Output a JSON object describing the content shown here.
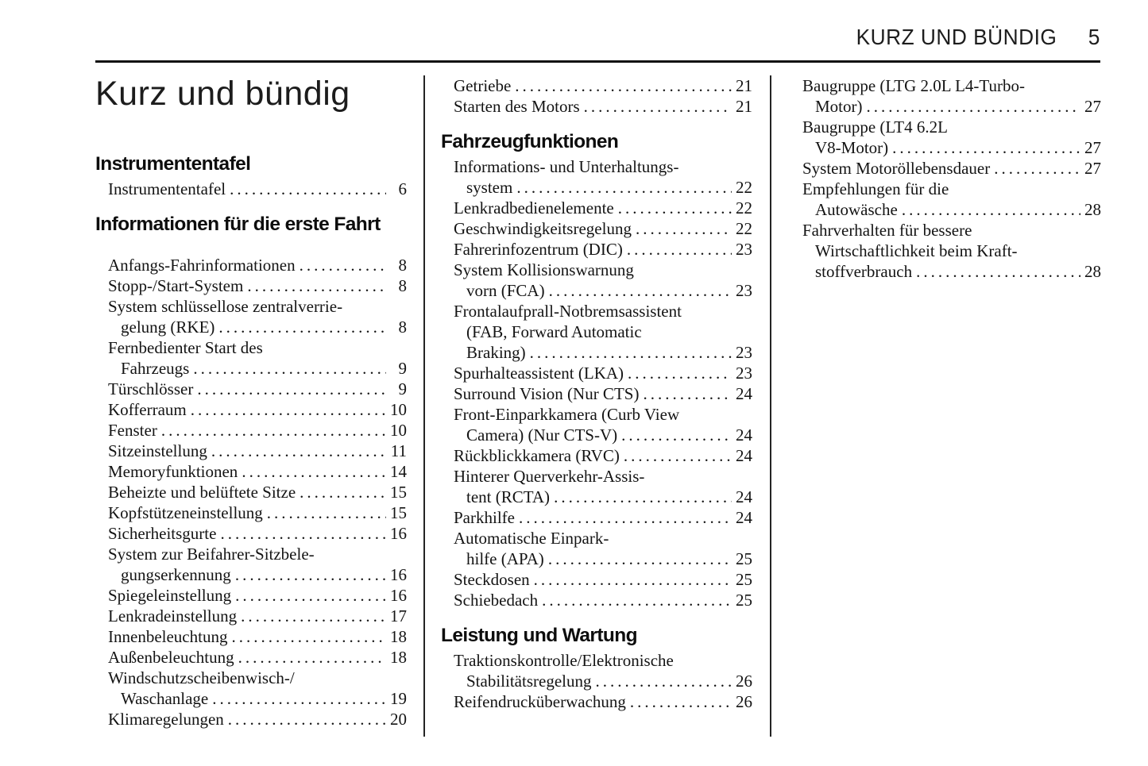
{
  "page": {
    "header": {
      "title": "KURZ UND BÜNDIG",
      "page_number": "5"
    },
    "title": "Kurz und bündig"
  },
  "colors": {
    "ink": "#141414",
    "background": "#ffffff"
  },
  "columns": [
    {
      "sections": [
        {
          "heading": "Instrumententafel",
          "entries": [
            {
              "lines": [
                "Instrumententafel"
              ],
              "page": "6"
            }
          ]
        },
        {
          "heading": "Informationen für die erste Fahrt",
          "gap_after_heading": true,
          "entries": [
            {
              "lines": [
                "Anfangs-Fahrinformationen"
              ],
              "page": "8"
            },
            {
              "lines": [
                "Stopp-/Start-System"
              ],
              "page": "8"
            },
            {
              "lines": [
                "System schlüssellose zentralverrie-",
                "gelung (RKE)"
              ],
              "page": "8"
            },
            {
              "lines": [
                "Fernbedienter Start des",
                "Fahrzeugs"
              ],
              "page": "9"
            },
            {
              "lines": [
                "Türschlösser"
              ],
              "page": "9"
            },
            {
              "lines": [
                "Kofferraum"
              ],
              "page": "10"
            },
            {
              "lines": [
                "Fenster"
              ],
              "page": "10"
            },
            {
              "lines": [
                "Sitzeinstellung"
              ],
              "page": "11"
            },
            {
              "lines": [
                "Memoryfunktionen"
              ],
              "page": "14"
            },
            {
              "lines": [
                "Beheizte und belüftete Sitze"
              ],
              "page": "15"
            },
            {
              "lines": [
                "Kopfstützeneinstellung"
              ],
              "page": "15"
            },
            {
              "lines": [
                "Sicherheitsgurte"
              ],
              "page": "16"
            },
            {
              "lines": [
                "System zur Beifahrer-Sitzbele-",
                "gungserkennung"
              ],
              "page": "16"
            },
            {
              "lines": [
                "Spiegeleinstellung"
              ],
              "page": "16"
            },
            {
              "lines": [
                "Lenkradeinstellung"
              ],
              "page": "17"
            },
            {
              "lines": [
                "Innenbeleuchtung"
              ],
              "page": "18"
            },
            {
              "lines": [
                "Außenbeleuchtung"
              ],
              "page": "18"
            },
            {
              "lines": [
                "Windschutzscheibenwisch-/",
                "Waschanlage"
              ],
              "page": "19"
            },
            {
              "lines": [
                "Klimaregelungen"
              ],
              "page": "20"
            }
          ]
        }
      ]
    },
    {
      "sections": [
        {
          "heading": null,
          "entries": [
            {
              "lines": [
                "Getriebe"
              ],
              "page": "21"
            },
            {
              "lines": [
                "Starten des Motors"
              ],
              "page": "21"
            }
          ]
        },
        {
          "heading": "Fahrzeugfunktionen",
          "entries": [
            {
              "lines": [
                "Informations- und Unterhaltungs-",
                "system"
              ],
              "page": "22"
            },
            {
              "lines": [
                "Lenkradbedienelemente"
              ],
              "page": "22"
            },
            {
              "lines": [
                "Geschwindigkeitsregelung"
              ],
              "page": "22"
            },
            {
              "lines": [
                "Fahrerinfozentrum (DIC)"
              ],
              "page": "23"
            },
            {
              "lines": [
                "System Kollisionswarnung",
                "vorn (FCA)"
              ],
              "page": "23"
            },
            {
              "lines": [
                "Frontalaufprall-Notbremsassistent",
                "(FAB, Forward Automatic",
                "Braking)"
              ],
              "page": "23"
            },
            {
              "lines": [
                "Spurhalteassistent (LKA)"
              ],
              "page": "23"
            },
            {
              "lines": [
                "Surround Vision (Nur CTS)"
              ],
              "page": "24"
            },
            {
              "lines": [
                "Front-Einparkkamera (Curb View",
                "Camera) (Nur CTS-V)"
              ],
              "page": "24"
            },
            {
              "lines": [
                "Rückblickkamera (RVC)"
              ],
              "page": "24"
            },
            {
              "lines": [
                "Hinterer Querverkehr-Assis-",
                "tent (RCTA)"
              ],
              "page": "24"
            },
            {
              "lines": [
                "Parkhilfe"
              ],
              "page": "24"
            },
            {
              "lines": [
                "Automatische Einpark-",
                "hilfe (APA)"
              ],
              "page": "25"
            },
            {
              "lines": [
                "Steckdosen"
              ],
              "page": "25"
            },
            {
              "lines": [
                "Schiebedach"
              ],
              "page": "25"
            }
          ]
        },
        {
          "heading": "Leistung und Wartung",
          "entries": [
            {
              "lines": [
                "Traktionskontrolle/Elektronische",
                "Stabilitätsregelung"
              ],
              "page": "26"
            },
            {
              "lines": [
                "Reifendrucküberwachung"
              ],
              "page": "26"
            }
          ]
        }
      ]
    },
    {
      "sections": [
        {
          "heading": null,
          "entries": [
            {
              "lines": [
                "Baugruppe (LTG 2.0L L4-Turbo-",
                "Motor)"
              ],
              "page": "27"
            },
            {
              "lines": [
                "Baugruppe (LT4 6.2L",
                "V8-Motor)"
              ],
              "page": "27"
            },
            {
              "lines": [
                "System Motoröllebensdauer"
              ],
              "page": "27"
            },
            {
              "lines": [
                "Empfehlungen für die",
                "Autowäsche"
              ],
              "page": "28"
            },
            {
              "lines": [
                "Fahrverhalten für bessere",
                "Wirtschaftlichkeit beim Kraft-",
                "stoffverbrauch"
              ],
              "page": "28"
            }
          ]
        }
      ]
    }
  ]
}
